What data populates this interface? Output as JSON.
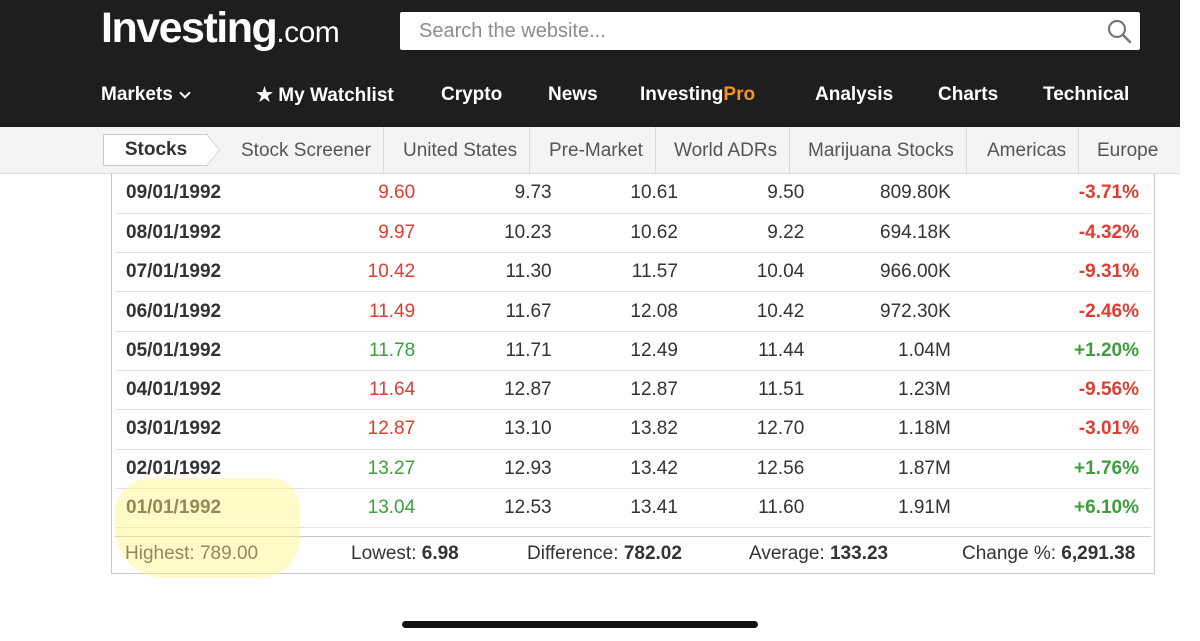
{
  "brand": {
    "logo_main": "Investing",
    "logo_suffix": ".com",
    "accent_color": "#f7941d"
  },
  "search": {
    "placeholder": "Search the website...",
    "icon": "search-icon"
  },
  "nav": {
    "markets": "Markets",
    "watchlist": "★ My Watchlist",
    "crypto": "Crypto",
    "news": "News",
    "pro_a": "Investing",
    "pro_b": "Pro",
    "analysis": "Analysis",
    "charts": "Charts",
    "technical": "Technical"
  },
  "subnav": {
    "active": "Stocks",
    "items": [
      "Stock Screener",
      "United States",
      "Pre-Market",
      "World ADRs",
      "Marijuana Stocks",
      "Americas",
      "Europe"
    ]
  },
  "rows": [
    {
      "date": "09/01/1992",
      "price": "9.60",
      "open": "9.73",
      "high": "10.61",
      "low": "9.50",
      "vol": "809.80K",
      "chg": "-3.71%",
      "dir": "down"
    },
    {
      "date": "08/01/1992",
      "price": "9.97",
      "open": "10.23",
      "high": "10.62",
      "low": "9.22",
      "vol": "694.18K",
      "chg": "-4.32%",
      "dir": "down"
    },
    {
      "date": "07/01/1992",
      "price": "10.42",
      "open": "11.30",
      "high": "11.57",
      "low": "10.04",
      "vol": "966.00K",
      "chg": "-9.31%",
      "dir": "down"
    },
    {
      "date": "06/01/1992",
      "price": "11.49",
      "open": "11.67",
      "high": "12.08",
      "low": "10.42",
      "vol": "972.30K",
      "chg": "-2.46%",
      "dir": "down"
    },
    {
      "date": "05/01/1992",
      "price": "11.78",
      "open": "11.71",
      "high": "12.49",
      "low": "11.44",
      "vol": "1.04M",
      "chg": "+1.20%",
      "dir": "up"
    },
    {
      "date": "04/01/1992",
      "price": "11.64",
      "open": "12.87",
      "high": "12.87",
      "low": "11.51",
      "vol": "1.23M",
      "chg": "-9.56%",
      "dir": "down"
    },
    {
      "date": "03/01/1992",
      "price": "12.87",
      "open": "13.10",
      "high": "13.82",
      "low": "12.70",
      "vol": "1.18M",
      "chg": "-3.01%",
      "dir": "down"
    },
    {
      "date": "02/01/1992",
      "price": "13.27",
      "open": "12.93",
      "high": "13.42",
      "low": "12.56",
      "vol": "1.87M",
      "chg": "+1.76%",
      "dir": "up"
    },
    {
      "date": "01/01/1992",
      "price": "13.04",
      "open": "12.53",
      "high": "13.41",
      "low": "11.60",
      "vol": "1.91M",
      "chg": "+6.10%",
      "dir": "up"
    }
  ],
  "summary": {
    "highest_label": "Highest:",
    "highest": "789.00",
    "lowest_label": "Lowest:",
    "lowest": "6.98",
    "difference_label": "Difference:",
    "difference": "782.02",
    "average_label": "Average:",
    "average": "133.23",
    "change_label": "Change %:",
    "change": "6,291.38"
  },
  "colors": {
    "up": "#3c9e3c",
    "down": "#e03c31",
    "header_bg": "#1e1e1e"
  }
}
